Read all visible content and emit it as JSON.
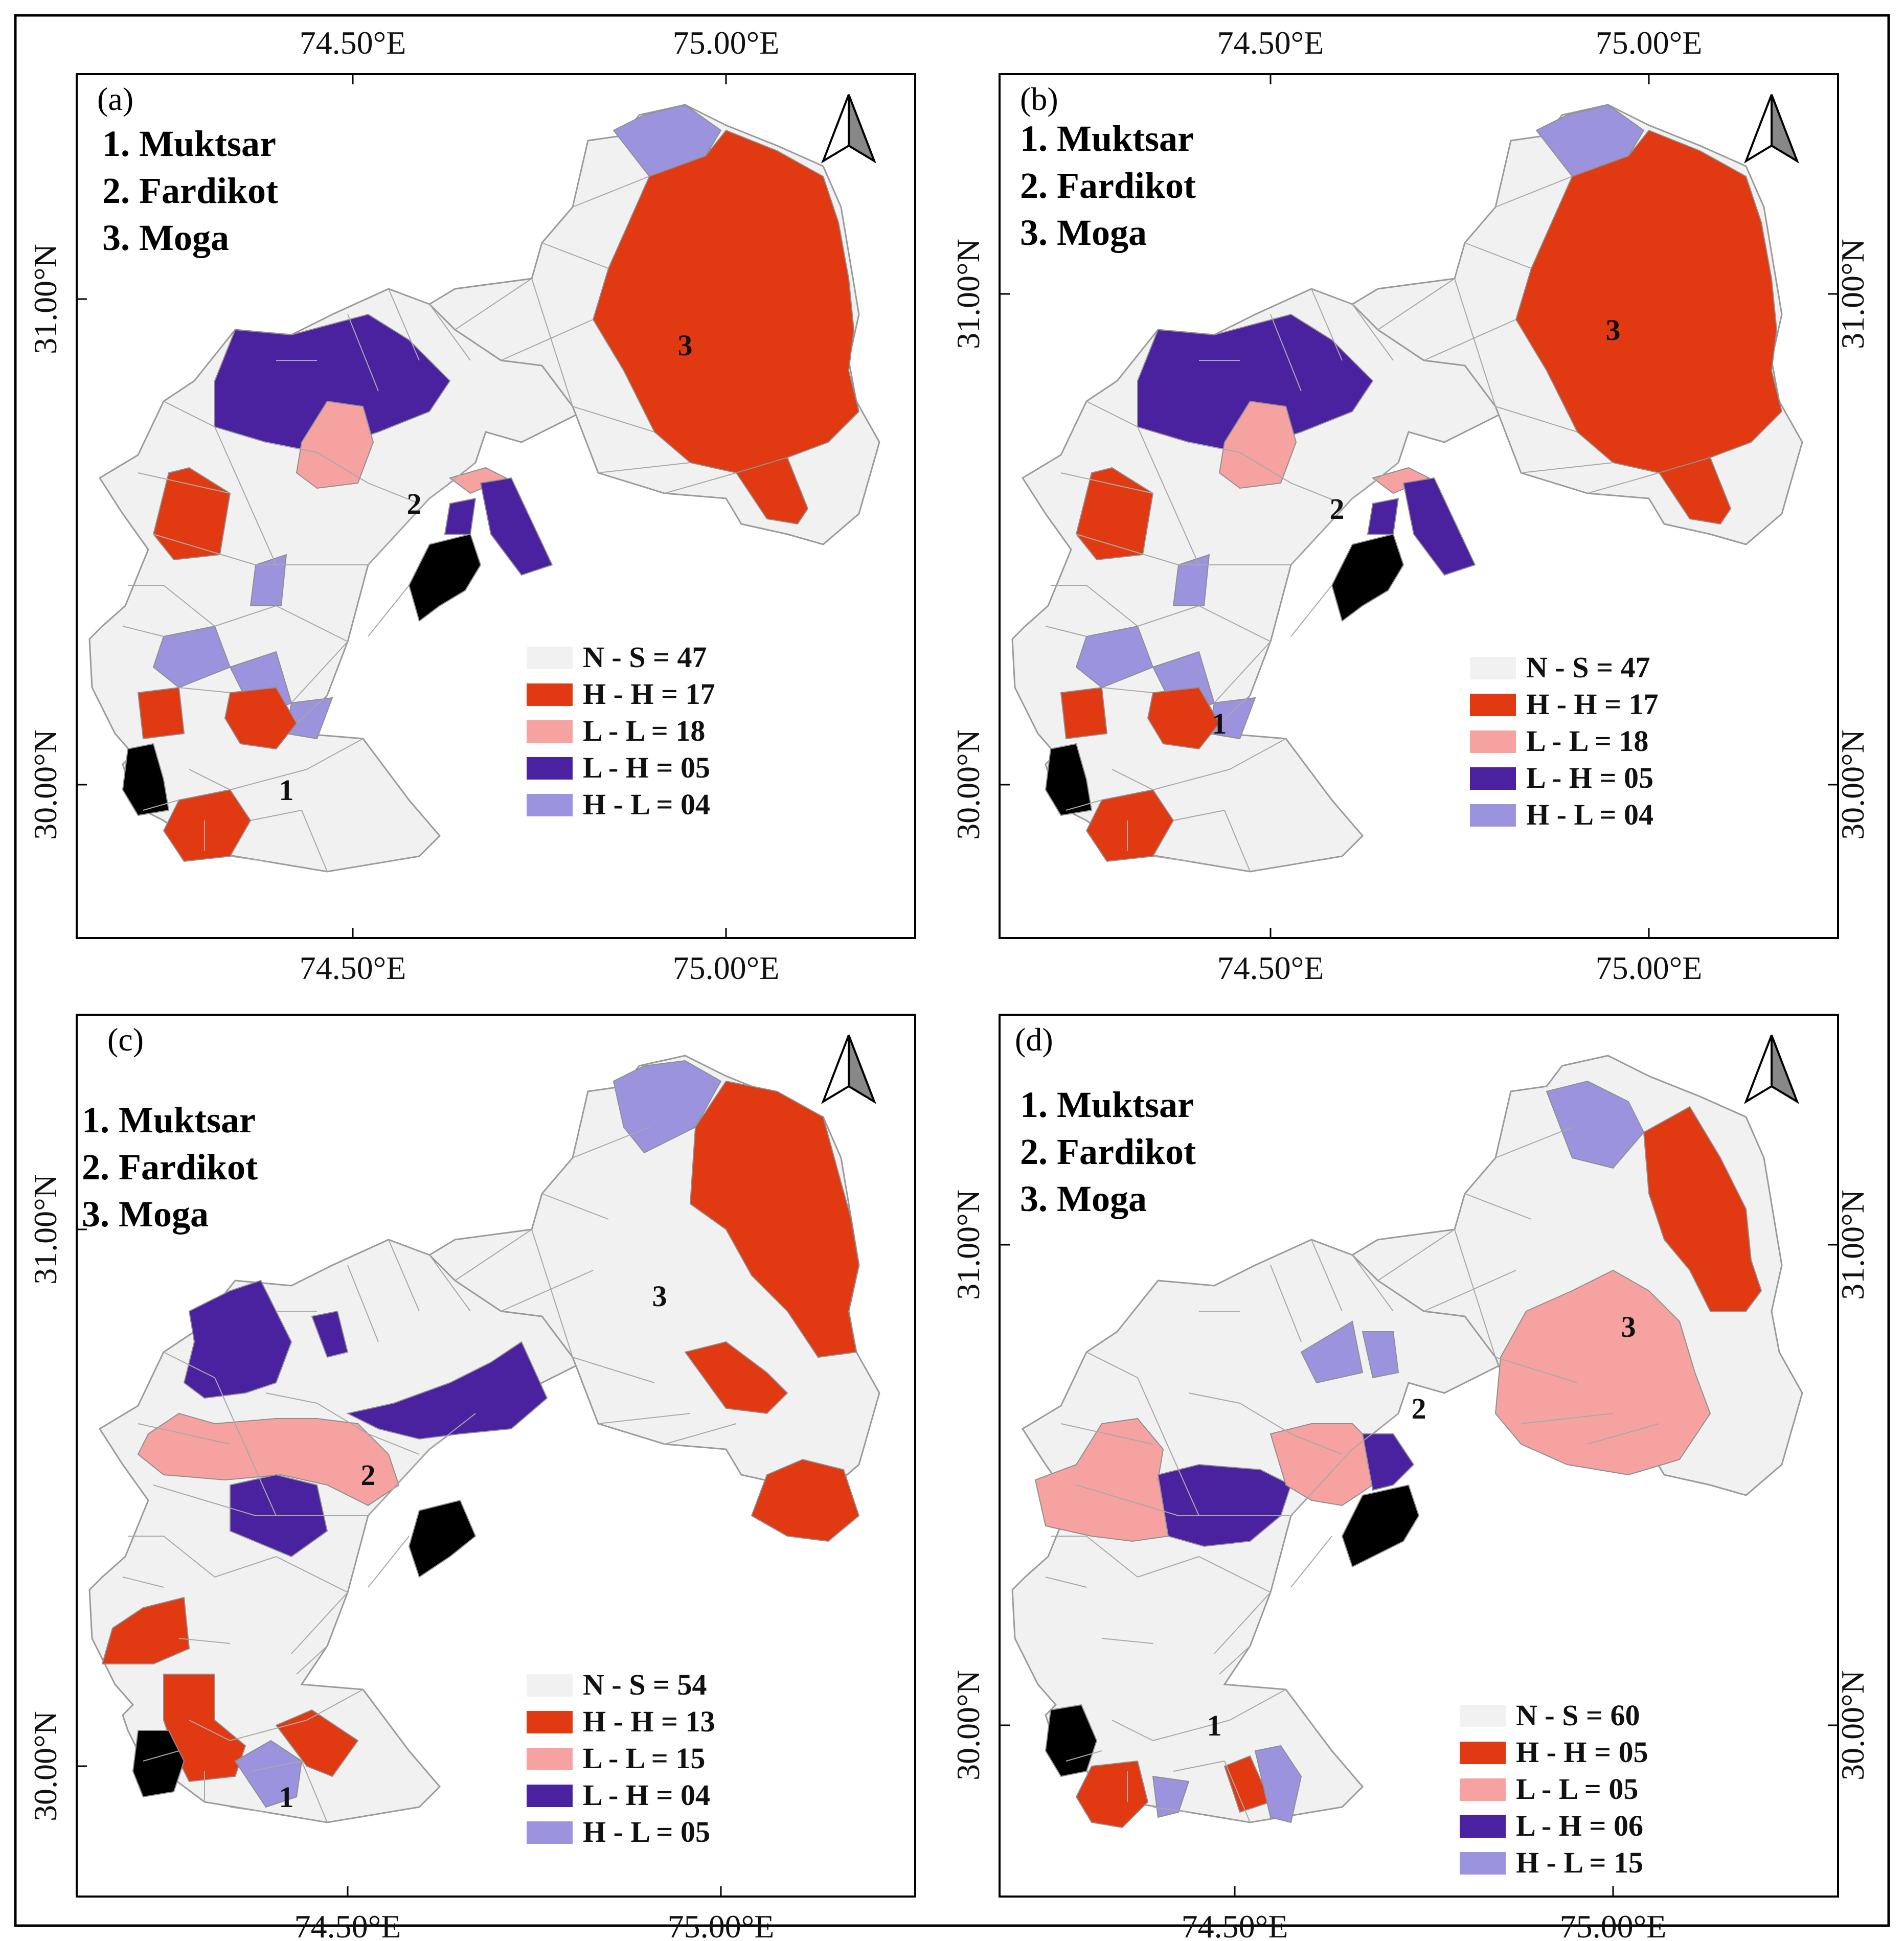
{
  "legend_names": [
    "N - S",
    "H - H",
    "L - L",
    "L - H",
    "H - L"
  ],
  "colors": {
    "NS": "#f1f1f1",
    "HH": "#e13a12",
    "LL": "#f6a2a0",
    "LH": "#4a22a0",
    "HL": "#9b93de",
    "black": "#000000",
    "border": "#9a9a9a"
  },
  "district_list": [
    "1. Muktsar",
    "2. Fardikot",
    "3. Moga"
  ],
  "district_numbers": [
    "1",
    "2",
    "3"
  ],
  "panels": [
    {
      "label": "(a)",
      "ticks": {
        "top": [
          "74.50°E",
          "75.00°E"
        ],
        "bottom": [
          "74.50°E",
          "75.00°E"
        ],
        "left": [
          "31.00°N",
          "30.00°N"
        ],
        "right": []
      },
      "legend": [
        {
          "key": "NS",
          "text": "N - S = 47"
        },
        {
          "key": "HH",
          "text": "H - H = 17"
        },
        {
          "key": "LL",
          "text": "L - L = 18"
        },
        {
          "key": "LH",
          "text": "L - H = 05"
        },
        {
          "key": "HL",
          "text": "H - L = 04"
        }
      ]
    },
    {
      "label": "(b)",
      "ticks": {
        "top": [
          "74.50°E",
          "75.00°E"
        ],
        "bottom": [
          "74.50°E",
          "75.00°E"
        ],
        "left": [
          "31.00°N",
          "30.00°N"
        ],
        "right": [
          "31.00°N",
          "30.00°N"
        ]
      },
      "legend": [
        {
          "key": "NS",
          "text": "N - S = 47"
        },
        {
          "key": "HH",
          "text": "H - H = 17"
        },
        {
          "key": "LL",
          "text": "L - L = 18"
        },
        {
          "key": "LH",
          "text": "L - H = 05"
        },
        {
          "key": "HL",
          "text": "H - L = 04"
        }
      ]
    },
    {
      "label": "(c)",
      "ticks": {
        "top": [],
        "bottom": [
          "74.50°E",
          "75.00°E"
        ],
        "left": [
          "31.00°N",
          "30.00°N"
        ],
        "right": []
      },
      "legend": [
        {
          "key": "NS",
          "text": "N - S = 54"
        },
        {
          "key": "HH",
          "text": "H - H = 13"
        },
        {
          "key": "LL",
          "text": "L - L = 15"
        },
        {
          "key": "LH",
          "text": "L - H = 04"
        },
        {
          "key": "HL",
          "text": "H - L = 05"
        }
      ]
    },
    {
      "label": "(d)",
      "ticks": {
        "top": [],
        "bottom": [
          "74.50°E",
          "75.00°E"
        ],
        "left": [
          "31.00°N",
          "30.00°N"
        ],
        "right": [
          "31.00°N",
          "30.00°N"
        ]
      },
      "legend": [
        {
          "key": "NS",
          "text": "N - S = 60"
        },
        {
          "key": "HH",
          "text": "H - H = 05"
        },
        {
          "key": "LL",
          "text": "L - L = 05"
        },
        {
          "key": "LH",
          "text": "L - H = 06"
        },
        {
          "key": "HL",
          "text": "H - L = 15"
        }
      ]
    }
  ]
}
